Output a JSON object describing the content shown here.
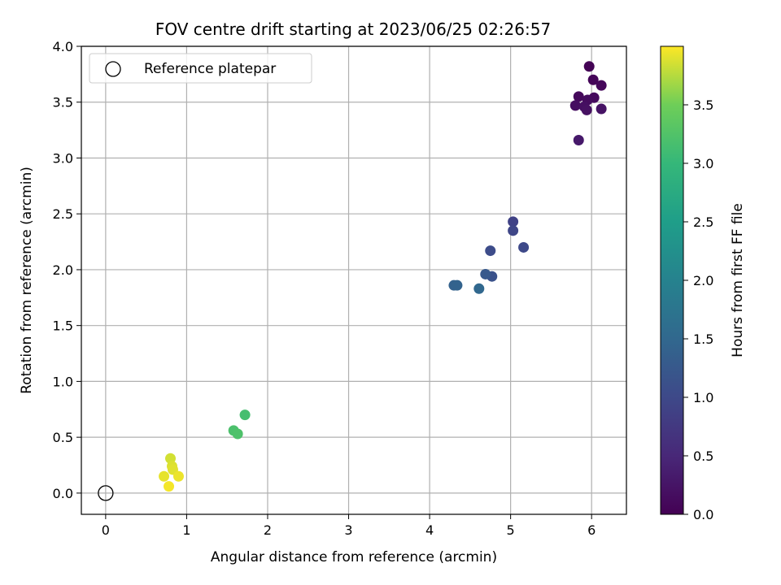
{
  "chart_data": {
    "type": "scatter",
    "title": "FOV centre drift starting at 2023/06/25 02:26:57",
    "xlabel": "Angular distance from reference (arcmin)",
    "ylabel": "Rotation from reference (arcmin)",
    "xlim": [
      -0.3,
      6.43
    ],
    "ylim": [
      -0.19,
      4.0
    ],
    "x_ticks": [
      0,
      1,
      2,
      3,
      4,
      5,
      6
    ],
    "x_tick_labels": [
      "0",
      "1",
      "2",
      "3",
      "4",
      "5",
      "6"
    ],
    "y_ticks": [
      0.0,
      0.5,
      1.0,
      1.5,
      2.0,
      2.5,
      3.0,
      3.5,
      4.0
    ],
    "y_tick_labels": [
      "0.0",
      "0.5",
      "1.0",
      "1.5",
      "2.0",
      "2.5",
      "3.0",
      "3.5",
      "4.0"
    ],
    "grid": true,
    "legend": {
      "placement": "top-left",
      "entries": [
        "Reference platepar"
      ]
    },
    "reference_point": {
      "name": "Reference platepar",
      "x": 0.0,
      "y": 0.0,
      "marker": "hollow-circle"
    },
    "colorbar": {
      "label": "Hours from first FF file",
      "colormap": "viridis",
      "range": [
        0.0,
        4.0
      ],
      "ticks": [
        0.0,
        0.5,
        1.0,
        1.5,
        2.0,
        2.5,
        3.0,
        3.5
      ],
      "tick_labels": [
        "0.0",
        "0.5",
        "1.0",
        "1.5",
        "2.0",
        "2.5",
        "3.0",
        "3.5"
      ]
    },
    "points": [
      {
        "x": 5.97,
        "y": 3.82,
        "hours": 0.02
      },
      {
        "x": 6.02,
        "y": 3.7,
        "hours": 0.05
      },
      {
        "x": 6.12,
        "y": 3.65,
        "hours": 0.08
      },
      {
        "x": 5.84,
        "y": 3.55,
        "hours": 0.1
      },
      {
        "x": 6.03,
        "y": 3.54,
        "hours": 0.12
      },
      {
        "x": 5.95,
        "y": 3.52,
        "hours": 0.14
      },
      {
        "x": 5.8,
        "y": 3.47,
        "hours": 0.16
      },
      {
        "x": 5.91,
        "y": 3.46,
        "hours": 0.18
      },
      {
        "x": 5.94,
        "y": 3.43,
        "hours": 0.2
      },
      {
        "x": 6.12,
        "y": 3.44,
        "hours": 0.22
      },
      {
        "x": 5.84,
        "y": 3.16,
        "hours": 0.3
      },
      {
        "x": 5.03,
        "y": 2.43,
        "hours": 0.9
      },
      {
        "x": 5.03,
        "y": 2.35,
        "hours": 0.95
      },
      {
        "x": 5.16,
        "y": 2.2,
        "hours": 1.0
      },
      {
        "x": 4.75,
        "y": 2.17,
        "hours": 1.05
      },
      {
        "x": 4.77,
        "y": 1.94,
        "hours": 1.15
      },
      {
        "x": 4.69,
        "y": 1.96,
        "hours": 1.25
      },
      {
        "x": 4.3,
        "y": 1.86,
        "hours": 1.4
      },
      {
        "x": 4.34,
        "y": 1.86,
        "hours": 1.42
      },
      {
        "x": 4.61,
        "y": 1.83,
        "hours": 1.5
      },
      {
        "x": 1.72,
        "y": 0.7,
        "hours": 3.15
      },
      {
        "x": 1.58,
        "y": 0.56,
        "hours": 3.2
      },
      {
        "x": 1.63,
        "y": 0.53,
        "hours": 3.22
      },
      {
        "x": 0.8,
        "y": 0.31,
        "hours": 3.85
      },
      {
        "x": 0.82,
        "y": 0.24,
        "hours": 3.88
      },
      {
        "x": 0.83,
        "y": 0.21,
        "hours": 3.9
      },
      {
        "x": 0.72,
        "y": 0.15,
        "hours": 3.92
      },
      {
        "x": 0.9,
        "y": 0.15,
        "hours": 3.94
      },
      {
        "x": 0.78,
        "y": 0.06,
        "hours": 3.97
      }
    ]
  },
  "colors": {
    "grid": "#b0b0b0",
    "axes": "#000000",
    "reference_marker": "#000000"
  }
}
